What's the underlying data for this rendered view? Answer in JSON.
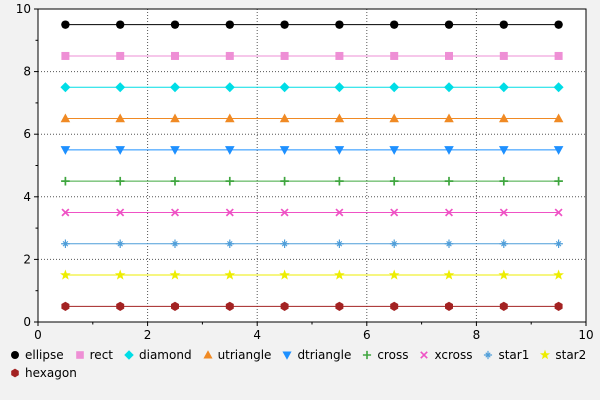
{
  "figure": {
    "background": "#f2f2f2",
    "plot_background": "#ffffff",
    "frame_color": "#000000",
    "grid_color": "#555555"
  },
  "chart_data": {
    "type": "scatter",
    "title": "",
    "xlabel": "",
    "ylabel": "",
    "xlim": [
      0,
      10
    ],
    "ylim": [
      0,
      10
    ],
    "xticks": [
      0,
      2,
      4,
      6,
      8,
      10
    ],
    "yticks": [
      0,
      2,
      4,
      6,
      8,
      10
    ],
    "xtick_labels": [
      "0",
      "2",
      "4",
      "6",
      "8",
      "10"
    ],
    "ytick_labels": [
      "0",
      "2",
      "4",
      "6",
      "8",
      "10"
    ],
    "grid": true,
    "grid_style": "dotted",
    "legend_position": "bottom",
    "x": [
      0.5,
      1.5,
      2.5,
      3.5,
      4.5,
      5.5,
      6.5,
      7.5,
      8.5,
      9.5
    ],
    "series": [
      {
        "name": "ellipse",
        "marker": "circle",
        "color": "#000000",
        "y": 9.5
      },
      {
        "name": "rect",
        "marker": "square",
        "color": "#EE8FD5",
        "y": 8.5
      },
      {
        "name": "diamond",
        "marker": "diamond",
        "color": "#00DDE6",
        "y": 7.5
      },
      {
        "name": "utriangle",
        "marker": "utriangle",
        "color": "#F08A24",
        "y": 6.5
      },
      {
        "name": "dtriangle",
        "marker": "dtriangle",
        "color": "#1E90FF",
        "y": 5.5
      },
      {
        "name": "cross",
        "marker": "cross",
        "color": "#3FA63F",
        "y": 4.5
      },
      {
        "name": "xcross",
        "marker": "xcross",
        "color": "#EF52C5",
        "y": 3.5
      },
      {
        "name": "star1",
        "marker": "star1",
        "color": "#4F9ED9",
        "y": 2.5
      },
      {
        "name": "star2",
        "marker": "star2",
        "color": "#EDED00",
        "y": 1.5
      },
      {
        "name": "hexagon",
        "marker": "hexagon",
        "color": "#A32222",
        "y": 0.5
      }
    ]
  }
}
